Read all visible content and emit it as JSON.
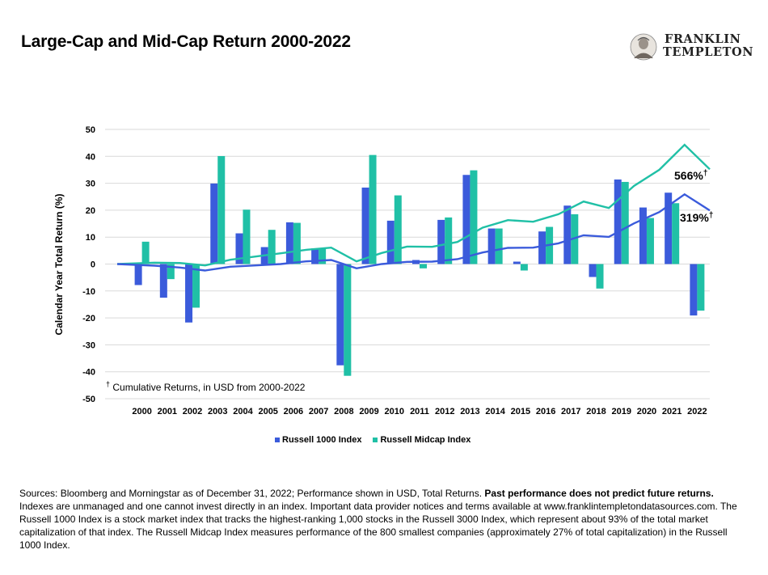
{
  "header": {
    "title": "Large-Cap and Mid-Cap Return 2000-2022",
    "brand_line1": "FRANKLIN",
    "brand_line2": "TEMPLETON"
  },
  "colors": {
    "series1": "#3b5bdb",
    "series2": "#20c0a6",
    "grid": "#d9d9d9"
  },
  "chart_data": {
    "type": "bar",
    "title": "Large-Cap and Mid-Cap Return 2000-2022",
    "ylabel": "Calendar Year Total Return (%)",
    "xlabel": "",
    "ylim": [
      -50,
      50
    ],
    "yticks": [
      50,
      40,
      30,
      20,
      10,
      0,
      -10,
      -20,
      -30,
      -40,
      -50
    ],
    "grid": true,
    "legend_position": "bottom",
    "categories": [
      "2000",
      "2001",
      "2002",
      "2003",
      "2004",
      "2005",
      "2006",
      "2007",
      "2008",
      "2009",
      "2010",
      "2011",
      "2012",
      "2013",
      "2014",
      "2015",
      "2016",
      "2017",
      "2018",
      "2019",
      "2020",
      "2021",
      "2022"
    ],
    "series": [
      {
        "name": "Russell 1000 Index",
        "type": "bar",
        "values": [
          -7.8,
          -12.5,
          -21.7,
          29.9,
          11.4,
          6.3,
          15.5,
          5.8,
          -37.6,
          28.4,
          16.1,
          1.5,
          16.4,
          33.1,
          13.2,
          0.9,
          12.1,
          21.7,
          -4.8,
          31.4,
          21.0,
          26.5,
          -19.1
        ]
      },
      {
        "name": "Russell Midcap Index",
        "type": "bar",
        "values": [
          8.3,
          -5.6,
          -16.2,
          40.1,
          20.2,
          12.7,
          15.3,
          5.6,
          -41.5,
          40.5,
          25.5,
          -1.6,
          17.3,
          34.8,
          13.2,
          -2.4,
          13.8,
          18.5,
          -9.1,
          30.5,
          17.1,
          22.6,
          -17.3
        ]
      },
      {
        "name": "Russell 1000 Index cumulative",
        "type": "line",
        "x": [
          "start",
          "2000",
          "2001",
          "2002",
          "2003",
          "2004",
          "2005",
          "2006",
          "2007",
          "2008",
          "2009",
          "2010",
          "2011",
          "2012",
          "2013",
          "2014",
          "2015",
          "2016",
          "2017",
          "2018",
          "2019",
          "2020",
          "2021",
          "2022"
        ],
        "values": [
          0,
          -0.6,
          -1.3,
          -2.4,
          -1.0,
          -0.5,
          0.0,
          1.0,
          1.5,
          -1.6,
          0.0,
          0.8,
          0.9,
          1.8,
          4.3,
          6.0,
          6.1,
          7.7,
          10.7,
          10.1,
          15.1,
          19.3,
          25.9,
          19.9
        ]
      },
      {
        "name": "Russell Midcap Index cumulative",
        "type": "line",
        "x": [
          "start",
          "2000",
          "2001",
          "2002",
          "2003",
          "2004",
          "2005",
          "2006",
          "2007",
          "2008",
          "2009",
          "2010",
          "2011",
          "2012",
          "2013",
          "2014",
          "2015",
          "2016",
          "2017",
          "2018",
          "2019",
          "2020",
          "2021",
          "2022"
        ],
        "values": [
          0,
          0.5,
          0.4,
          -0.5,
          1.6,
          2.8,
          4.0,
          5.3,
          6.1,
          1.0,
          4.1,
          6.5,
          6.4,
          8.2,
          13.5,
          16.3,
          15.7,
          18.5,
          23.2,
          20.8,
          29.0,
          35.0,
          44.3,
          35.2
        ]
      }
    ],
    "annotations": {
      "midcap_total": "566%",
      "largecap_total": "319%",
      "dagger": "†",
      "note": "Cumulative Returns, in USD from 2000-2022"
    }
  },
  "footer": {
    "text1": "Sources: Bloomberg and Morningstar as of December 31, 2022; Performance shown in USD, Total Returns.",
    "bold": "Past performance does not predict future returns.",
    "text2": "Indexes are unmanaged and one cannot invest directly in an index. Important data provider notices and terms available at www.franklintempletondatasources.com. The Russell 1000 Index is a stock market index that tracks the highest-ranking 1,000 stocks in the Russell 3000 Index, which represent about 93% of the total market capitalization of that index. The Russell Midcap Index measures performance of the 800 smallest companies (approximately 27% of total capitalization) in the Russell 1000 Index."
  }
}
